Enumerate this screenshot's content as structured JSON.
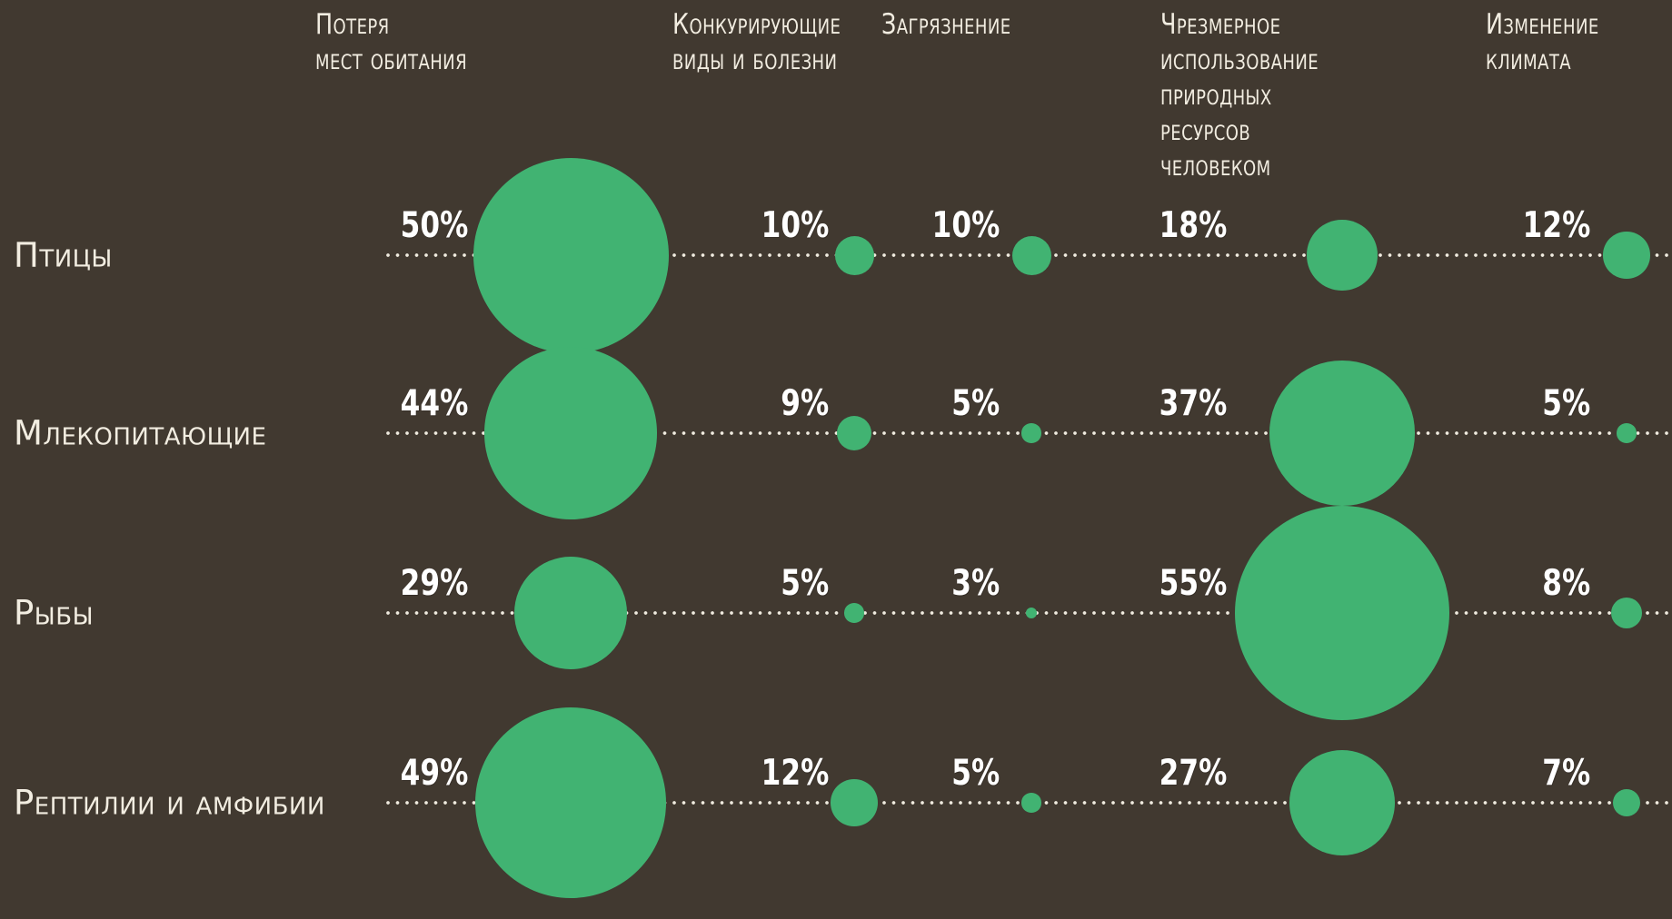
{
  "colors": {
    "background": "#413930",
    "bubble": "#41b372",
    "header_text": "#f2ede1",
    "value_text": "#ffffff",
    "dotted_line": "#f0ebdf"
  },
  "chart_data": {
    "type": "bubble",
    "title": "",
    "unit": "%",
    "rows": [
      "Птицы",
      "Млекопитающие",
      "Рыбы",
      "Рептилии и амфибии"
    ],
    "columns": [
      "Потеря мест обитания",
      "Конкурирующие виды и болезни",
      "Загрязнение",
      "Чрезмерное использование природных ресурсов человеком",
      "Изменение климата"
    ],
    "columns_display": [
      "Потеря\nмест обитания",
      "Конкурирующие\nвиды и болезни",
      "Загрязнение",
      "Чрезмерное\nиспользование\nприродных\nресурсов\nчеловеком",
      "Изменение\nклимата"
    ],
    "values": [
      [
        50,
        10,
        10,
        18,
        12
      ],
      [
        44,
        9,
        5,
        37,
        5
      ],
      [
        29,
        5,
        3,
        55,
        8
      ],
      [
        49,
        12,
        5,
        27,
        7
      ]
    ],
    "value_labels": [
      [
        "50%",
        "10%",
        "10%",
        "18%",
        "12%"
      ],
      [
        "44%",
        "9%",
        "5%",
        "37%",
        "5%"
      ],
      [
        "29%",
        "5%",
        "3%",
        "55%",
        "8%"
      ],
      [
        "49%",
        "12%",
        "5%",
        "27%",
        "7%"
      ]
    ],
    "legend": "none",
    "grid": "dotted horizontal row lines",
    "bubble_size_rule": "diameter proportional to percentage value"
  }
}
